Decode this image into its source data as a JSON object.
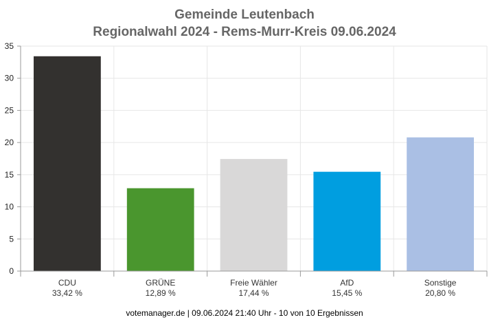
{
  "title_line1": "Gemeinde Leutenbach",
  "title_line2": "Regionalwahl 2024 - Rems-Murr-Kreis 09.06.2024",
  "footer": "votemanager.de | 09.06.2024 21:40 Uhr - 10 von 10 Ergebnissen",
  "chart_data": {
    "type": "bar",
    "title": "Gemeinde Leutenbach",
    "subtitle": "Regionalwahl 2024 - Rems-Murr-Kreis 09.06.2024",
    "categories": [
      "CDU",
      "GRÜNE",
      "Freie Wähler",
      "AfD",
      "Sonstige"
    ],
    "values": [
      33.42,
      12.89,
      17.44,
      15.45,
      20.8
    ],
    "value_labels": [
      "33,42 %",
      "12,89 %",
      "17,44 %",
      "15,45 %",
      "20,80 %"
    ],
    "colors": [
      "#33312f",
      "#4a962e",
      "#d9d8d8",
      "#009ee0",
      "#aabfe4"
    ],
    "ylim": [
      0,
      35
    ],
    "yticks": [
      0,
      5,
      10,
      15,
      20,
      25,
      30,
      35
    ],
    "xlabel": "",
    "ylabel": "",
    "grid": true,
    "legend": "none"
  }
}
